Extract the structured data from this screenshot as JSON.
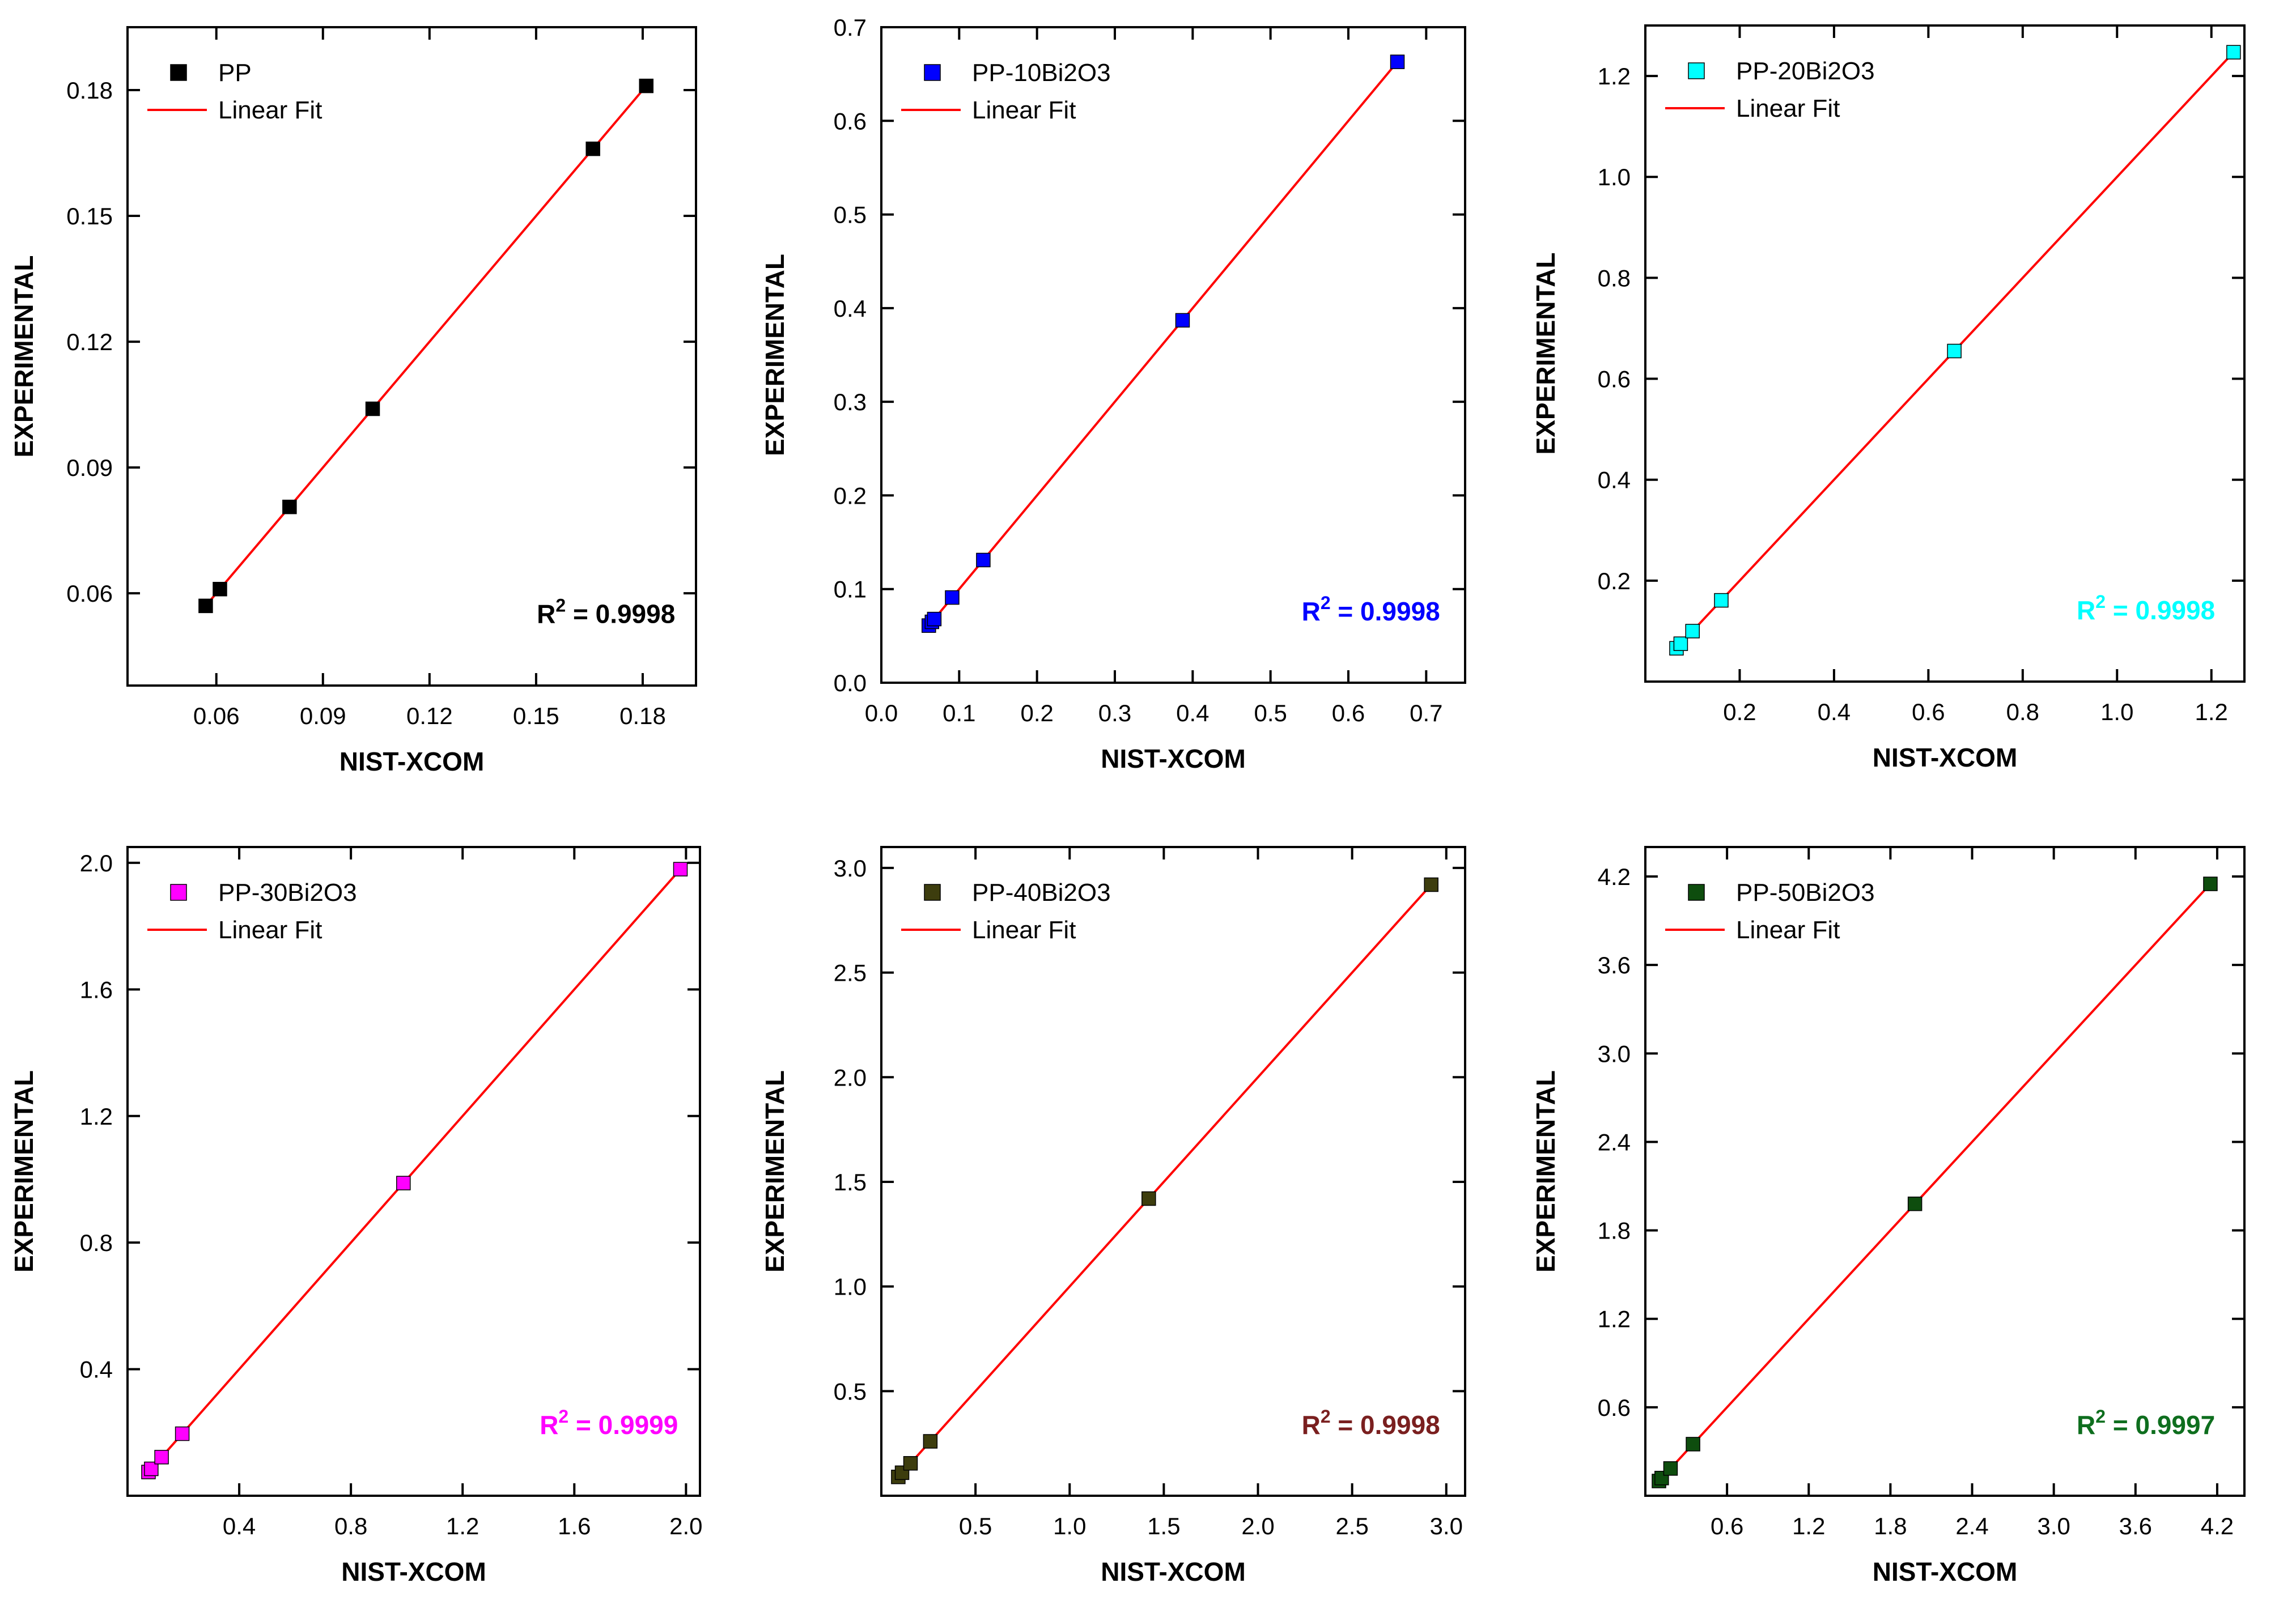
{
  "chart_data": [
    {
      "type": "scatter",
      "legend": {
        "series": "PP",
        "fit": "Linear Fit"
      },
      "xlabel": "NIST-XCOM",
      "ylabel": "EXPERIMENTAL",
      "xlim": [
        0.035,
        0.195
      ],
      "ylim": [
        0.038,
        0.195
      ],
      "xticks": [
        "0.06",
        "0.09",
        "0.12",
        "0.15",
        "0.18"
      ],
      "yticks": [
        "0.06",
        "0.09",
        "0.12",
        "0.15",
        "0.18"
      ],
      "points": [
        [
          0.057,
          0.057
        ],
        [
          0.061,
          0.061
        ],
        [
          0.0806,
          0.0806
        ],
        [
          0.104,
          0.104
        ],
        [
          0.166,
          0.166
        ],
        [
          0.181,
          0.181
        ]
      ],
      "fit": [
        0.058,
        0.181
      ],
      "r2_label": "R",
      "r2_sup": "2",
      "r2_value": " = 0.9998",
      "marker_color": "#000000",
      "r2_color": "#000000"
    },
    {
      "type": "scatter",
      "legend": {
        "series": "PP-10Bi2O3",
        "fit": "Linear Fit"
      },
      "xlabel": "NIST-XCOM",
      "ylabel": "EXPERIMENTAL",
      "xlim": [
        0.0,
        0.75
      ],
      "ylim": [
        0.0,
        0.7
      ],
      "xticks": [
        "0.0",
        "0.1",
        "0.2",
        "0.3",
        "0.4",
        "0.5",
        "0.6",
        "0.7"
      ],
      "yticks": [
        "0.0",
        "0.1",
        "0.2",
        "0.3",
        "0.4",
        "0.5",
        "0.6",
        "0.7"
      ],
      "points": [
        [
          0.061,
          0.061
        ],
        [
          0.065,
          0.065
        ],
        [
          0.068,
          0.068
        ],
        [
          0.091,
          0.091
        ],
        [
          0.131,
          0.131
        ],
        [
          0.387,
          0.387
        ],
        [
          0.663,
          0.663
        ]
      ],
      "fit": [
        0.061,
        0.663
      ],
      "r2_label": "R",
      "r2_sup": "2",
      "r2_value": " = 0.9998",
      "marker_color": "#0000ff",
      "r2_color": "#0000ff"
    },
    {
      "type": "scatter",
      "legend": {
        "series": "PP-20Bi2O3",
        "fit": "Linear Fit"
      },
      "xlabel": "NIST-XCOM",
      "ylabel": "EXPERIMENTAL",
      "xlim": [
        0.0,
        1.27
      ],
      "ylim": [
        0.0,
        1.3
      ],
      "xticks": [
        "0.2",
        "0.4",
        "0.6",
        "0.8",
        "1.0",
        "1.2"
      ],
      "yticks": [
        "0.2",
        "0.4",
        "0.6",
        "0.8",
        "1.0",
        "1.2"
      ],
      "points": [
        [
          0.066,
          0.066
        ],
        [
          0.075,
          0.075
        ],
        [
          0.1,
          0.1
        ],
        [
          0.161,
          0.161
        ],
        [
          0.655,
          0.655
        ],
        [
          1.247,
          1.247
        ]
      ],
      "fit": [
        0.066,
        1.247
      ],
      "r2_label": "R",
      "r2_sup": "2",
      "r2_value": " = 0.9998",
      "marker_color": "#00ffff",
      "r2_color": "#00ffff"
    },
    {
      "type": "scatter",
      "legend": {
        "series": "PP-30Bi2O3",
        "fit": "Linear Fit"
      },
      "xlabel": "NIST-XCOM",
      "ylabel": "EXPERIMENTAL",
      "xlim": [
        0.0,
        2.05
      ],
      "ylim": [
        0.0,
        2.05
      ],
      "xticks": [
        "0.4",
        "0.8",
        "1.2",
        "1.6",
        "2.0"
      ],
      "yticks": [
        "0.4",
        "0.8",
        "1.2",
        "1.6",
        "2.0"
      ],
      "points": [
        [
          0.075,
          0.075
        ],
        [
          0.085,
          0.085
        ],
        [
          0.122,
          0.122
        ],
        [
          0.196,
          0.196
        ],
        [
          0.988,
          0.988
        ],
        [
          1.98,
          1.98
        ]
      ],
      "fit": [
        0.075,
        1.98
      ],
      "r2_label": "R",
      "r2_sup": "2",
      "r2_value": " = 0.9999",
      "marker_color": "#ff00ff",
      "r2_color": "#ff00ff"
    },
    {
      "type": "scatter",
      "legend": {
        "series": "PP-40Bi2O3",
        "fit": "Linear Fit"
      },
      "xlabel": "NIST-XCOM",
      "ylabel": "EXPERIMENTAL",
      "xlim": [
        0.0,
        3.1
      ],
      "ylim": [
        0.0,
        3.1
      ],
      "xticks": [
        "0.5",
        "1.0",
        "1.5",
        "2.0",
        "2.5",
        "3.0"
      ],
      "yticks": [
        "0.5",
        "1.0",
        "1.5",
        "2.0",
        "2.5",
        "3.0"
      ],
      "points": [
        [
          0.09,
          0.09
        ],
        [
          0.11,
          0.11
        ],
        [
          0.155,
          0.155
        ],
        [
          0.26,
          0.26
        ],
        [
          1.42,
          1.42
        ],
        [
          2.92,
          2.92
        ]
      ],
      "fit": [
        0.09,
        2.92
      ],
      "r2_label": "R",
      "r2_sup": "2",
      "r2_value": " = 0.9998",
      "marker_color": "#3d3d0e",
      "r2_color": "#7a1f1f"
    },
    {
      "type": "scatter",
      "legend": {
        "series": "PP-50Bi2O3",
        "fit": "Linear Fit"
      },
      "xlabel": "NIST-XCOM",
      "ylabel": "EXPERIMENTAL",
      "xlim": [
        0.0,
        4.4
      ],
      "ylim": [
        0.0,
        4.4
      ],
      "xticks": [
        "0.6",
        "1.2",
        "1.8",
        "2.4",
        "3.0",
        "3.6",
        "4.2"
      ],
      "yticks": [
        "0.6",
        "1.2",
        "1.8",
        "2.4",
        "3.0",
        "3.6",
        "4.2"
      ],
      "points": [
        [
          0.1,
          0.1
        ],
        [
          0.12,
          0.12
        ],
        [
          0.185,
          0.185
        ],
        [
          0.35,
          0.35
        ],
        [
          1.98,
          1.98
        ],
        [
          4.15,
          4.15
        ]
      ],
      "fit": [
        0.1,
        4.15
      ],
      "r2_label": "R",
      "r2_sup": "2",
      "r2_value": " = 0.9997",
      "marker_color": "#0e4d0e",
      "r2_color": "#0e6e1e"
    }
  ],
  "fit_line_color": "#ff0000",
  "axis_color": "#000000"
}
